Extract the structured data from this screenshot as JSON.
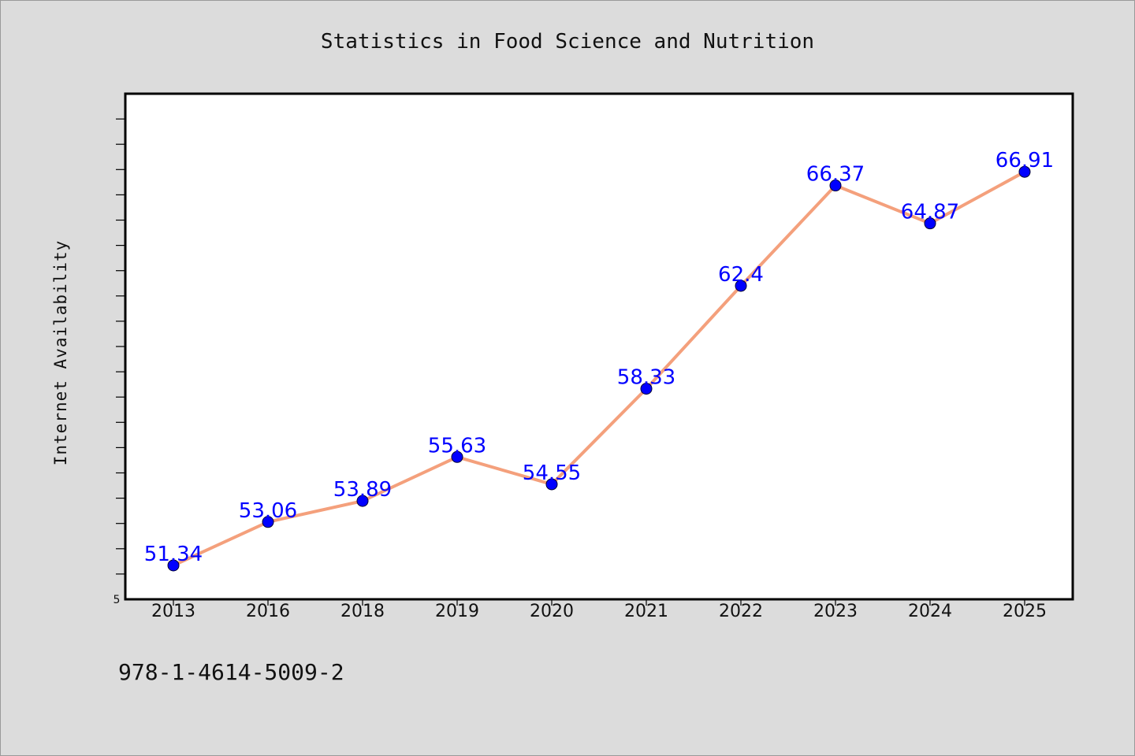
{
  "chart_data": {
    "type": "line",
    "title": "Statistics in Food Science and Nutrition",
    "ylabel": "Internet Availability",
    "xlabel": "",
    "categories": [
      "2013",
      "2016",
      "2018",
      "2019",
      "2020",
      "2021",
      "2022",
      "2023",
      "2024",
      "2025"
    ],
    "values": [
      51.34,
      53.06,
      53.89,
      55.63,
      54.55,
      58.33,
      62.4,
      66.37,
      64.87,
      66.91
    ],
    "data_labels": [
      "51.34",
      "53.06",
      "53.89",
      "55.63",
      "54.55",
      "58.33",
      "62.4",
      "66.37",
      "64.87",
      "66.91"
    ],
    "ylim": [
      50,
      70
    ],
    "y_tick_label": "5",
    "grid": false,
    "legend": "none",
    "line_color": "#f4a07c",
    "marker_color": "#0000ff",
    "label_color": "#0000ff",
    "plot_background": "#ffffff",
    "figure_background": "#dcdcdc"
  },
  "footer": {
    "isbn": "978-1-4614-5009-2"
  }
}
